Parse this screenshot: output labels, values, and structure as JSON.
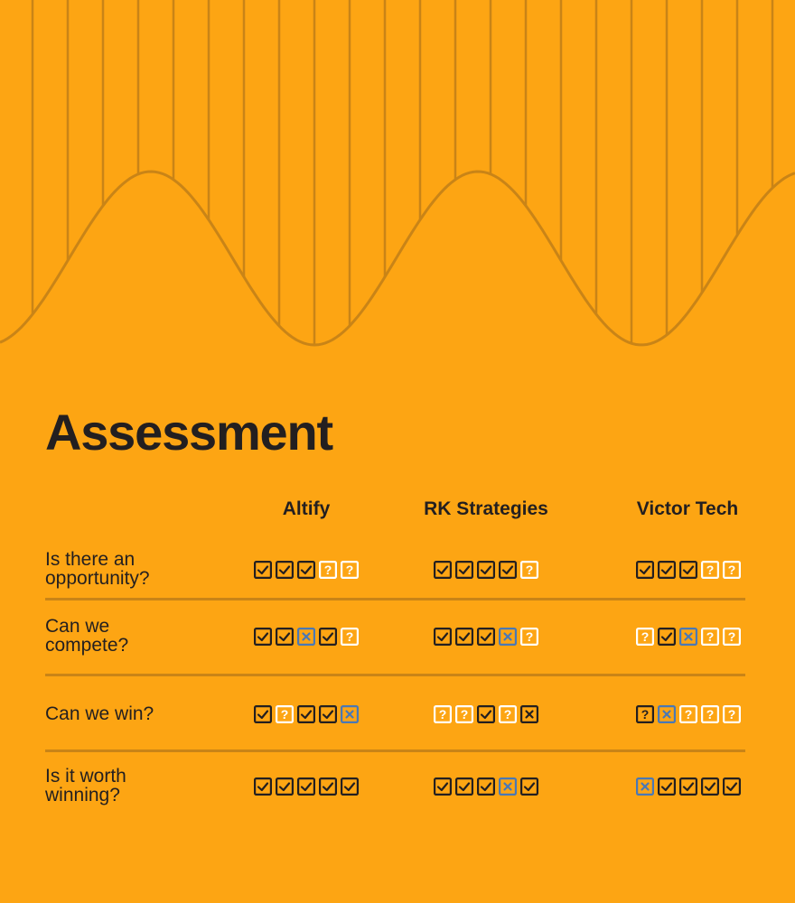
{
  "title": "Assessment",
  "columns": [
    "Altify",
    "RK Strategies",
    "Victor Tech"
  ],
  "rows": [
    {
      "question": [
        "Is there an",
        "opportunity?"
      ],
      "cells": [
        [
          "check",
          "check",
          "check",
          "unknown",
          "unknown"
        ],
        [
          "check",
          "check",
          "check",
          "check",
          "unknown"
        ],
        [
          "check",
          "check",
          "check",
          "unknown",
          "unknown"
        ]
      ]
    },
    {
      "question": [
        "Can we",
        "compete?"
      ],
      "cells": [
        [
          "check",
          "check",
          "cross-blue",
          "check",
          "unknown"
        ],
        [
          "check",
          "check",
          "check",
          "cross-blue",
          "unknown"
        ],
        [
          "unknown",
          "check",
          "cross-blue",
          "unknown",
          "unknown"
        ]
      ]
    },
    {
      "question": [
        "Can we win?"
      ],
      "cells": [
        [
          "check",
          "unknown",
          "check",
          "check",
          "cross-blue"
        ],
        [
          "unknown",
          "unknown",
          "check",
          "unknown",
          "cross"
        ],
        [
          "unknown-dark",
          "cross-blue",
          "unknown",
          "unknown",
          "unknown"
        ]
      ]
    },
    {
      "question": [
        "Is it worth",
        "winning?"
      ],
      "cells": [
        [
          "check",
          "check",
          "check",
          "check",
          "check"
        ],
        [
          "check",
          "check",
          "check",
          "cross-blue",
          "check"
        ],
        [
          "cross-blue",
          "check",
          "check",
          "check",
          "check"
        ]
      ]
    }
  ],
  "colors": {
    "background": "#FDA513",
    "line": "#C98417",
    "ink": "#231F20",
    "blue": "#4A78B5",
    "white": "#FFFFFF"
  },
  "icon_legend": {
    "check": "checkbox-checked-icon",
    "unknown": "question-box-icon",
    "unknown-dark": "question-box-dark-icon",
    "cross": "cross-box-icon",
    "cross-blue": "cross-box-blue-icon"
  }
}
